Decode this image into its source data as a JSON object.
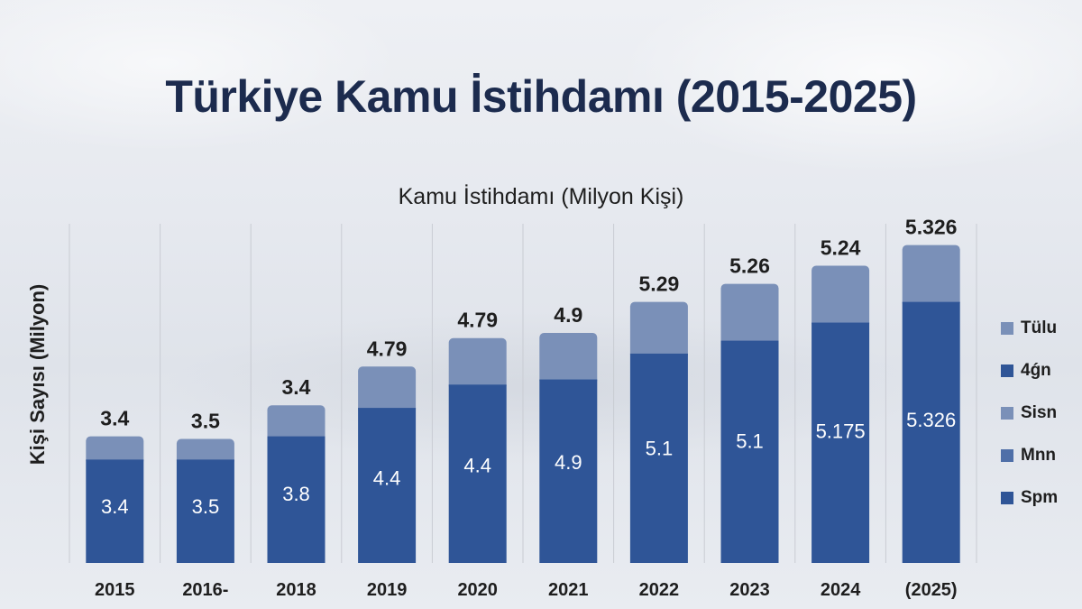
{
  "chart_data": {
    "type": "bar",
    "stacked": true,
    "title": "Türkiye Kamu İstihdamı (2015-2025)",
    "subtitle": "Kamu İstihdamı (Milyon Kişi)",
    "xlabel": "",
    "ylabel": "Kişi Sayısı (Milyon)",
    "categories": [
      "2015",
      "2016-",
      "2018",
      "2019",
      "2020",
      "2021",
      "2022",
      "2023",
      "2024",
      "(2025)"
    ],
    "series": [
      {
        "name": "",
        "color": "#2f5597",
        "values": [
          2.0,
          2.0,
          2.45,
          3.0,
          3.45,
          3.55,
          4.05,
          4.3,
          4.65,
          5.05
        ],
        "labels": [
          "3.4",
          "3.5",
          "3.8",
          "4.4",
          "4.4",
          "4.9",
          "5.1",
          "5.1",
          "5.175",
          "5.326"
        ]
      },
      {
        "name": "",
        "color": "#7a90b8",
        "values": [
          0.45,
          0.4,
          0.6,
          0.8,
          0.9,
          0.9,
          1.0,
          1.1,
          1.1,
          1.1
        ],
        "labels": [
          "3.4",
          "3.5",
          "3.4",
          "4.79",
          "4.79",
          "4.9",
          "5.29",
          "5.26",
          "5.24",
          "5.326"
        ]
      }
    ],
    "ylim": [
      0,
      6.3
    ],
    "grid": {
      "vertical": true,
      "horizontal": false
    },
    "legend": {
      "position": "right",
      "entries": [
        {
          "label": "Tülu",
          "color": "#7a90b8"
        },
        {
          "label": "4ǵn",
          "color": "#2f5597"
        },
        {
          "label": "Sisn",
          "color": "#7a90b8"
        },
        {
          "label": "Mnn",
          "color": "#4f6fa8"
        },
        {
          "label": "Spm",
          "color": "#2f5597"
        }
      ]
    }
  }
}
